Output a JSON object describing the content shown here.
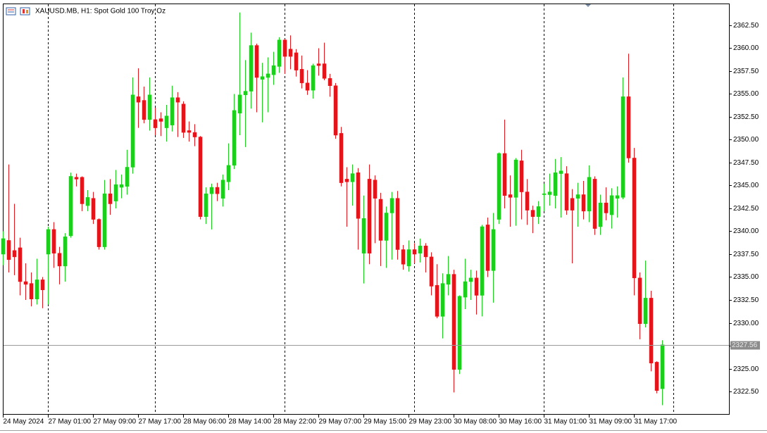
{
  "chart_data": {
    "type": "candlestick",
    "title": "XAUUSD.MB, H1:  Spot Gold 100 Troy Oz",
    "up_color": "#1ccf1c",
    "down_color": "#e4141a",
    "categories": [
      "24 May 2024",
      null,
      null,
      null,
      null,
      null,
      null,
      null,
      "27 May 01:00",
      null,
      null,
      null,
      null,
      null,
      null,
      null,
      "27 May 09:00",
      null,
      null,
      null,
      null,
      null,
      null,
      null,
      "27 May 17:00",
      null,
      null,
      null,
      null,
      null,
      null,
      null,
      "28 May 06:00",
      null,
      null,
      null,
      null,
      null,
      null,
      null,
      "28 May 14:00",
      null,
      null,
      null,
      null,
      null,
      null,
      null,
      "28 May 22:00",
      null,
      null,
      null,
      null,
      null,
      null,
      null,
      "29 May 07:00",
      null,
      null,
      null,
      null,
      null,
      null,
      null,
      "29 May 15:00",
      null,
      null,
      null,
      null,
      null,
      null,
      null,
      "29 May 23:00",
      null,
      null,
      null,
      null,
      null,
      null,
      null,
      "30 May 08:00",
      null,
      null,
      null,
      null,
      null,
      null,
      null,
      "30 May 16:00",
      null,
      null,
      null,
      null,
      null,
      null,
      null,
      "31 May 01:00",
      null,
      null,
      null,
      null,
      null,
      null,
      null,
      "31 May 09:00",
      null,
      null,
      null,
      null,
      null,
      null,
      null,
      "31 May 17:00",
      null,
      null,
      null,
      null,
      null
    ],
    "open": [
      2337.5,
      2339.0,
      2337.9,
      2338.2,
      2334.5,
      2334.3,
      2332.6,
      2334.7,
      2337.5,
      2340.2,
      2337.6,
      2336.2,
      2339.5,
      2345.9,
      2345.9,
      2342.8,
      2343.6,
      2341.3,
      2338.3,
      2344.1,
      2343.3,
      2344.8,
      2344.9,
      2347.0,
      2354.7,
      2354.3,
      2352.2,
      2352.2,
      2352.3,
      2351.3,
      2351.6,
      2354.6,
      2353.9,
      2351.0,
      2350.8,
      2350.3,
      2341.6,
      2344.1,
      2344.8,
      2343.6,
      2345.4,
      2347.2,
      2352.9,
      2354.9,
      2355.3,
      2360.3,
      2356.6,
      2356.8,
      2357.1,
      2358.0,
      2360.9,
      2359.9,
      2359.5,
      2357.7,
      2356.2,
      2355.4,
      2358.3,
      2358.3,
      2356.7,
      2355.9,
      2350.7,
      2345.7,
      2345.4,
      2346.4,
      2337.6,
      2345.7,
      2345.6,
      2343.5,
      2339.0,
      2342.0,
      2343.6,
      2338.0,
      2336.2,
      2338.0,
      2337.6,
      2338.4,
      2337.2,
      2334.1,
      2330.7,
      2334.2,
      2335.3,
      2324.9,
      2332.8,
      2334.5,
      2334.9,
      2333.0,
      2340.7,
      2335.7,
      2341.3,
      2348.5,
      2344.0,
      2343.7,
      2347.7,
      2344.3,
      2342.3,
      2341.6,
      2344.0,
      2344.0,
      2343.9,
      2346.3,
      2346.3,
      2343.6,
      2343.6,
      2344.0,
      2342.2,
      2345.7,
      2340.5,
      2343.1,
      2341.8,
      2343.6,
      2343.7,
      2354.7,
      2348.0,
      2334.9,
      2329.9,
      2332.7,
      2325.7,
      2322.8
    ],
    "high": [
      2340.0,
      2347.3,
      2343.0,
      2339.3,
      2336.5,
      2335.5,
      2337.0,
      2335.0,
      2340.5,
      2341.0,
      2338.3,
      2339.8,
      2346.4,
      2346.3,
      2346.0,
      2344.5,
      2344.3,
      2341.4,
      2345.6,
      2345.7,
      2346.7,
      2346.2,
      2348.9,
      2356.8,
      2357.8,
      2355.8,
      2356.8,
      2353.5,
      2353.0,
      2353.8,
      2355.9,
      2355.2,
      2354.2,
      2352.0,
      2351.7,
      2350.4,
      2344.8,
      2345.2,
      2345.3,
      2346.2,
      2349.6,
      2355.0,
      2363.9,
      2358.7,
      2361.7,
      2360.5,
      2358.4,
      2359.0,
      2359.6,
      2361.2,
      2361.0,
      2361.4,
      2359.9,
      2359.2,
      2357.6,
      2358.3,
      2360.0,
      2360.6,
      2357.2,
      2356.2,
      2351.4,
      2347.0,
      2347.3,
      2346.9,
      2343.9,
      2347.3,
      2346.1,
      2344.2,
      2342.7,
      2344.3,
      2344.4,
      2338.5,
      2339.0,
      2338.7,
      2339.2,
      2338.7,
      2337.7,
      2336.4,
      2335.4,
      2337.3,
      2335.8,
      2333.0,
      2337.0,
      2335.8,
      2335.7,
      2340.7,
      2341.5,
      2342.0,
      2348.6,
      2352.2,
      2346.1,
      2348.0,
      2348.9,
      2345.7,
      2342.8,
      2343.3,
      2345.2,
      2346.3,
      2347.9,
      2348.1,
      2347.1,
      2344.6,
      2345.3,
      2345.5,
      2347.2,
      2346.0,
      2344.0,
      2344.8,
      2344.7,
      2344.9,
      2356.8,
      2359.4,
      2349.1,
      2335.5,
      2336.8,
      2333.5,
      2325.8,
      2328.1
    ],
    "low": [
      2336.3,
      2335.5,
      2335.2,
      2333.0,
      2332.5,
      2331.8,
      2332.0,
      2331.6,
      2332.0,
      2336.0,
      2334.2,
      2334.5,
      2339.3,
      2344.9,
      2342.2,
      2342.2,
      2340.8,
      2338.0,
      2338.0,
      2341.8,
      2342.5,
      2343.6,
      2344.0,
      2346.3,
      2351.3,
      2351.8,
      2351.0,
      2350.5,
      2350.4,
      2349.8,
      2350.9,
      2350.3,
      2350.2,
      2349.8,
      2349.3,
      2341.3,
      2340.8,
      2340.2,
      2343.3,
      2342.7,
      2344.5,
      2346.8,
      2350.5,
      2349.2,
      2353.4,
      2353.0,
      2351.9,
      2353.0,
      2356.0,
      2357.3,
      2357.2,
      2357.7,
      2356.9,
      2355.6,
      2354.9,
      2354.5,
      2357.0,
      2356.5,
      2354.7,
      2350.1,
      2344.9,
      2340.5,
      2342.8,
      2338.0,
      2334.3,
      2336.4,
      2338.7,
      2336.2,
      2336.0,
      2336.9,
      2336.9,
      2335.8,
      2335.6,
      2336.5,
      2336.6,
      2335.5,
      2333.0,
      2330.5,
      2328.3,
      2333.0,
      2322.4,
      2324.4,
      2331.5,
      2332.5,
      2330.9,
      2330.7,
      2335.0,
      2332.2,
      2340.8,
      2342.5,
      2340.5,
      2340.6,
      2341.3,
      2340.7,
      2339.8,
      2340.8,
      2342.2,
      2342.8,
      2342.5,
      2341.5,
      2341.8,
      2336.5,
      2340.5,
      2341.3,
      2341.0,
      2339.6,
      2339.6,
      2341.2,
      2340.3,
      2341.5,
      2343.5,
      2347.5,
      2333.0,
      2328.2,
      2329.5,
      2324.7,
      2322.3,
      2321.0
    ],
    "close": [
      2339.2,
      2336.9,
      2337.2,
      2334.5,
      2334.2,
      2332.6,
      2334.7,
      2333.6,
      2340.2,
      2337.6,
      2336.2,
      2339.4,
      2346.0,
      2345.7,
      2343.0,
      2343.7,
      2341.3,
      2338.3,
      2344.1,
      2343.0,
      2345.1,
      2345.1,
      2347.0,
      2354.9,
      2354.1,
      2352.2,
      2354.9,
      2351.3,
      2352.0,
      2352.6,
      2354.6,
      2354.1,
      2350.8,
      2350.8,
      2350.3,
      2341.6,
      2344.1,
      2344.8,
      2344.1,
      2345.6,
      2347.2,
      2353.2,
      2354.9,
      2355.3,
      2360.3,
      2356.8,
      2356.9,
      2357.2,
      2358.1,
      2360.9,
      2359.1,
      2359.1,
      2357.6,
      2356.2,
      2355.4,
      2358.1,
      2358.1,
      2356.7,
      2355.9,
      2350.5,
      2345.3,
      2345.4,
      2346.3,
      2341.4,
      2341.4,
      2337.6,
      2343.6,
      2339.0,
      2342.0,
      2343.6,
      2338.0,
      2336.4,
      2338.0,
      2337.5,
      2338.4,
      2337.2,
      2334.0,
      2330.7,
      2334.3,
      2335.3,
      2324.9,
      2332.9,
      2334.5,
      2334.9,
      2333.0,
      2340.5,
      2335.7,
      2340.2,
      2348.5,
      2343.9,
      2343.7,
      2347.8,
      2344.3,
      2342.3,
      2341.6,
      2342.7,
      2344.1,
      2344.3,
      2346.4,
      2346.6,
      2342.3,
      2342.3,
      2344.0,
      2342.2,
      2345.9,
      2340.3,
      2343.1,
      2342.0,
      2343.9,
      2343.9,
      2354.7,
      2348.0,
      2334.9,
      2329.9,
      2332.7,
      2325.6,
      2322.6,
      2327.6
    ],
    "ylim": [
      2320.04,
      2364.88
    ],
    "yticks": [
      {
        "value": 2322.5,
        "label": "2322.50"
      },
      {
        "value": 2325,
        "label": "2325.00"
      },
      {
        "value": 2327.5,
        "label": "2327.50"
      },
      {
        "value": 2330,
        "label": "2330.00"
      },
      {
        "value": 2332.5,
        "label": "2332.50"
      },
      {
        "value": 2335,
        "label": "2335.00"
      },
      {
        "value": 2337.5,
        "label": "2337.50"
      },
      {
        "value": 2340,
        "label": "2340.00"
      },
      {
        "value": 2342.5,
        "label": "2342.50"
      },
      {
        "value": 2345,
        "label": "2345.00"
      },
      {
        "value": 2347.5,
        "label": "2347.50"
      },
      {
        "value": 2350,
        "label": "2350.00"
      },
      {
        "value": 2352.5,
        "label": "2352.50"
      },
      {
        "value": 2355,
        "label": "2355.00"
      },
      {
        "value": 2357.5,
        "label": "2357.50"
      },
      {
        "value": 2360,
        "label": "2360.00"
      },
      {
        "value": 2362.5,
        "label": "2362.50"
      }
    ],
    "last_price": 2327.56,
    "grid": false
  }
}
